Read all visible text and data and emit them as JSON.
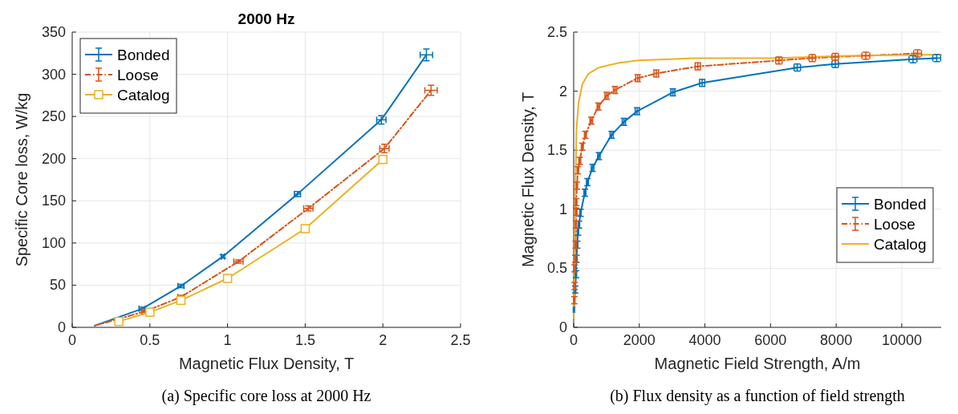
{
  "chart_data": [
    {
      "type": "line",
      "title": "2000 Hz",
      "xlabel": "Magnetic Flux Density, T",
      "ylabel": "Specific Core loss, W/kg",
      "xlim": [
        0,
        2.5
      ],
      "xticks": [
        0,
        0.5,
        1,
        1.5,
        2,
        2.5
      ],
      "ylim": [
        0,
        350
      ],
      "yticks": [
        0,
        50,
        100,
        150,
        200,
        250,
        300,
        350
      ],
      "grid": true,
      "legend": "top left",
      "annotations": [
        "(a) Specific core loss at 2000 Hz"
      ],
      "series": [
        {
          "name": "Bonded",
          "color": "#0072bd",
          "line_style": "solid",
          "marker": "none",
          "x": [
            0.145,
            0.45,
            0.7,
            0.97,
            1.45,
            1.99,
            2.28
          ],
          "values": [
            2,
            22,
            49,
            84,
            158,
            246,
            323
          ],
          "errors": [
            null,
            2,
            2,
            2,
            3,
            5,
            7
          ],
          "xerrors": [
            null,
            0.02,
            0.02,
            0.01,
            0.02,
            0.03,
            0.04
          ]
        },
        {
          "name": "Loose",
          "color": "#d95319",
          "line_style": "dashed",
          "marker": "none",
          "x": [
            0.145,
            0.47,
            0.7,
            1.07,
            1.52,
            2.01,
            2.31
          ],
          "values": [
            2,
            19,
            36,
            78,
            141,
            212,
            281
          ],
          "errors": [
            null,
            1,
            2,
            2,
            3,
            5,
            6
          ],
          "xerrors": [
            null,
            0.02,
            0.02,
            0.03,
            0.03,
            0.03,
            0.04
          ]
        },
        {
          "name": "Catalog",
          "color": "#edb120",
          "line_style": "solid",
          "marker": "square",
          "x": [
            0.3,
            0.5,
            0.7,
            1.0,
            1.5,
            2.0
          ],
          "values": [
            7,
            18,
            32,
            58,
            117,
            199
          ]
        }
      ]
    },
    {
      "type": "line",
      "xlabel": "Magnetic Field Strength, A/m",
      "ylabel": "Magnetic Flux Density, T",
      "xlim": [
        0,
        11200
      ],
      "xticks": [
        0,
        2000,
        4000,
        6000,
        8000,
        10000
      ],
      "ylim": [
        0,
        2.5
      ],
      "yticks": [
        0,
        0.5,
        1,
        1.5,
        2,
        2.5
      ],
      "grid": true,
      "legend": "right",
      "annotations": [
        "(b) Flux density as a function of field strength"
      ],
      "series": [
        {
          "name": "Bonded",
          "color": "#0072bd",
          "line_style": "solid",
          "marker": "none",
          "x": [
            8,
            47,
            70,
            85,
            109,
            132,
            163,
            210,
            342,
            420,
            575,
            769,
            1158,
            1531,
            1935,
            3023,
            3916,
            6814,
            7972,
            10342,
            11064
          ],
          "values": [
            0.15,
            0.32,
            0.45,
            0.58,
            0.7,
            0.81,
            0.87,
            0.97,
            1.14,
            1.23,
            1.35,
            1.45,
            1.63,
            1.74,
            1.83,
            1.99,
            2.07,
            2.2,
            2.23,
            2.27,
            2.28
          ],
          "errors": [
            null,
            0.03,
            0.03,
            0.03,
            0.03,
            0.03,
            0.03,
            0.03,
            0.03,
            0.03,
            0.03,
            0.03,
            0.03,
            0.03,
            0.03,
            0.03,
            0.03,
            0.03,
            0.03,
            0.03,
            0.03
          ],
          "xerrors": [
            20,
            20,
            20,
            20,
            20,
            20,
            20,
            20,
            30,
            30,
            40,
            40,
            50,
            50,
            60,
            60,
            80,
            100,
            100,
            120,
            120
          ]
        },
        {
          "name": "Loose",
          "color": "#d95319",
          "line_style": "dashed",
          "marker": "none",
          "x": [
            10,
            20,
            30,
            30,
            50,
            60,
            70,
            80,
            80,
            100,
            130,
            186,
            264,
            357,
            536,
            754,
            1002,
            1259,
            1950,
            2517,
            3784,
            6255,
            7273,
            7972,
            8904,
            10482
          ],
          "values": [
            0.15,
            0.23,
            0.35,
            0.5,
            0.58,
            0.7,
            0.87,
            0.98,
            1.06,
            1.2,
            1.33,
            1.41,
            1.53,
            1.63,
            1.75,
            1.87,
            1.96,
            2.01,
            2.11,
            2.15,
            2.21,
            2.26,
            2.28,
            2.29,
            2.3,
            2.32
          ],
          "errors": [
            null,
            0.03,
            0.03,
            0.03,
            0.03,
            0.03,
            0.03,
            0.03,
            0.03,
            0.03,
            0.03,
            0.03,
            0.03,
            0.03,
            0.03,
            0.03,
            0.03,
            0.03,
            0.03,
            0.03,
            0.03,
            0.03,
            0.03,
            0.03,
            0.03,
            0.03
          ],
          "xerrors": [
            null,
            20,
            20,
            20,
            20,
            20,
            20,
            20,
            20,
            20,
            20,
            30,
            30,
            30,
            40,
            40,
            50,
            50,
            60,
            70,
            80,
            100,
            100,
            100,
            120,
            120
          ]
        },
        {
          "name": "Catalog",
          "color": "#edb120",
          "line_style": "solid",
          "marker": "none",
          "x": [
            5,
            31,
            54,
            85,
            148,
            264,
            458,
            769,
            1391,
            1974,
            3722,
            6053,
            8384,
            11200
          ],
          "values": [
            0.08,
            0.54,
            1.22,
            1.67,
            1.9,
            2.06,
            2.15,
            2.2,
            2.24,
            2.26,
            2.28,
            2.28,
            2.3,
            2.31
          ]
        }
      ]
    }
  ]
}
